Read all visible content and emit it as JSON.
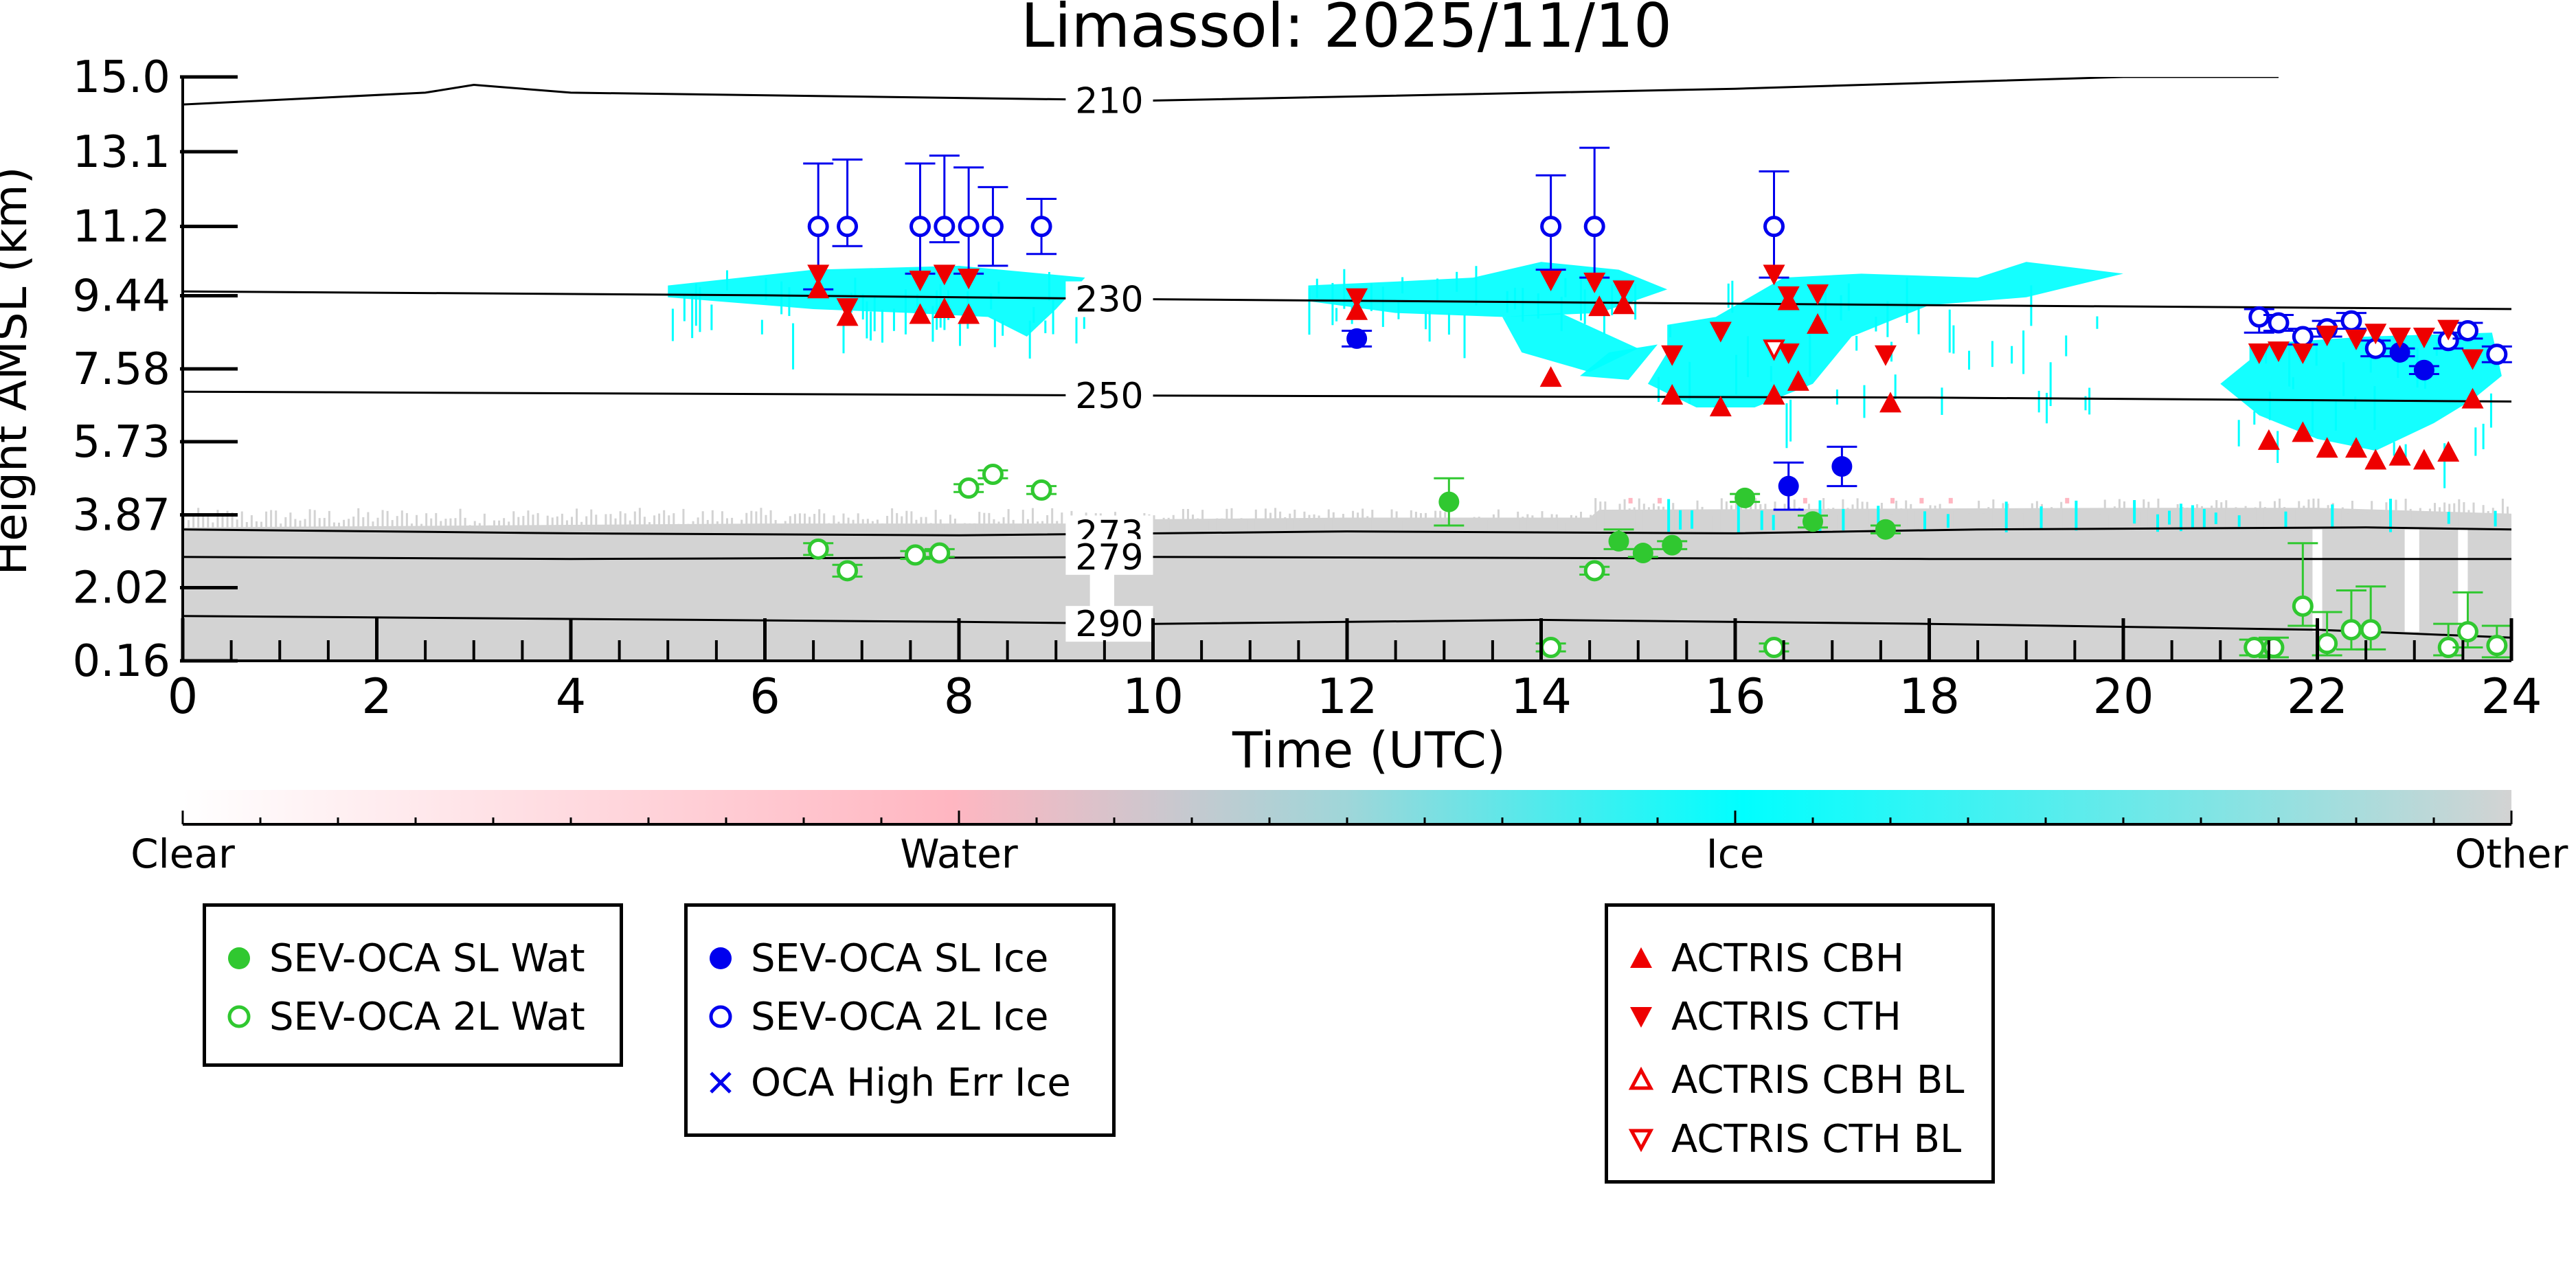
{
  "chart_data": {
    "type": "scatter",
    "title": "Limassol: 2025/11/10",
    "xlabel": "Time (UTC)",
    "ylabel": "Height AMSL (km)",
    "xlim": [
      0,
      24
    ],
    "ylim": [
      0.16,
      15.0
    ],
    "x_ticks": [
      "0",
      "2",
      "4",
      "6",
      "8",
      "10",
      "12",
      "14",
      "16",
      "18",
      "20",
      "22",
      "24"
    ],
    "y_ticks": [
      "0.16",
      "2.02",
      "3.87",
      "5.73",
      "7.58",
      "9.44",
      "11.2",
      "13.1",
      "15.0"
    ],
    "y_tick_values": [
      0.16,
      2.02,
      3.87,
      5.73,
      7.58,
      9.44,
      11.2,
      13.1,
      15.0
    ],
    "colors": {
      "water": "#30c830",
      "ice_marker": "#0000ee",
      "actris": "#ee0000",
      "ice_cloud": "#00ffff",
      "other": "#d3d3d3",
      "water_cloud": "#ffb6c1"
    },
    "colorbar": {
      "labels": [
        "Clear",
        "Water",
        "Ice",
        "Other"
      ]
    },
    "isotherms": [
      {
        "label": "210",
        "points": [
          [
            0,
            14.3
          ],
          [
            2.5,
            14.6
          ],
          [
            3,
            14.8
          ],
          [
            4,
            14.6
          ],
          [
            10,
            14.4
          ],
          [
            16,
            14.7
          ],
          [
            20,
            15.0
          ],
          [
            21.6,
            15.0
          ]
        ]
      },
      {
        "label": "230",
        "points": [
          [
            0,
            9.55
          ],
          [
            6,
            9.45
          ],
          [
            10,
            9.35
          ],
          [
            18,
            9.2
          ],
          [
            24,
            9.1
          ]
        ]
      },
      {
        "label": "250",
        "points": [
          [
            0,
            7.0
          ],
          [
            10,
            6.9
          ],
          [
            18,
            6.85
          ],
          [
            24,
            6.75
          ]
        ]
      },
      {
        "label": "273",
        "points": [
          [
            0,
            3.5
          ],
          [
            4,
            3.4
          ],
          [
            8,
            3.35
          ],
          [
            12,
            3.45
          ],
          [
            16,
            3.4
          ],
          [
            18.5,
            3.5
          ],
          [
            22.5,
            3.55
          ],
          [
            24,
            3.5
          ]
        ]
      },
      {
        "label": "279",
        "points": [
          [
            0,
            2.8
          ],
          [
            4,
            2.75
          ],
          [
            10,
            2.8
          ],
          [
            18,
            2.75
          ],
          [
            24,
            2.75
          ]
        ]
      },
      {
        "label": "290",
        "points": [
          [
            0,
            1.3
          ],
          [
            8,
            1.15
          ],
          [
            10,
            1.1
          ],
          [
            14,
            1.2
          ],
          [
            18,
            1.1
          ],
          [
            22,
            0.95
          ],
          [
            24,
            0.75
          ]
        ]
      }
    ],
    "series": [
      {
        "name": "SEV-OCA SL Wat",
        "marker": "filled-circle",
        "color": "#30c830",
        "points": [
          [
            13.05,
            4.2
          ],
          [
            14.8,
            3.2
          ],
          [
            15.05,
            2.9
          ],
          [
            15.35,
            3.1
          ],
          [
            16.1,
            4.3
          ],
          [
            16.8,
            3.7
          ],
          [
            17.55,
            3.5
          ]
        ],
        "err_up": [
          0.6,
          0.3,
          0.1,
          0.1,
          0.1,
          0.15,
          0.1
        ],
        "err_dn": [
          0.6,
          0.2,
          0.1,
          0.1,
          0.1,
          0.15,
          0.1
        ]
      },
      {
        "name": "SEV-OCA 2L Wat",
        "marker": "open-circle",
        "color": "#30c830",
        "points": [
          [
            6.55,
            3.0
          ],
          [
            6.85,
            2.45
          ],
          [
            7.55,
            2.85
          ],
          [
            7.8,
            2.9
          ],
          [
            8.1,
            4.55
          ],
          [
            8.35,
            4.9
          ],
          [
            8.85,
            4.5
          ],
          [
            14.1,
            0.5
          ],
          [
            14.55,
            2.45
          ],
          [
            16.4,
            0.5
          ],
          [
            21.35,
            0.5
          ],
          [
            21.55,
            0.5
          ],
          [
            21.85,
            1.55
          ],
          [
            22.1,
            0.6
          ],
          [
            22.35,
            0.95
          ],
          [
            22.55,
            0.95
          ],
          [
            23.35,
            0.5
          ],
          [
            23.55,
            0.9
          ],
          [
            23.85,
            0.55
          ]
        ],
        "err_up": [
          0.15,
          0.15,
          0.1,
          0.1,
          0.1,
          0.1,
          0.1,
          0.1,
          0.1,
          0.1,
          0.2,
          0.25,
          1.6,
          0.8,
          1.0,
          1.1,
          0.6,
          1.0,
          0.5
        ],
        "err_dn": [
          0.15,
          0.15,
          0.1,
          0.1,
          0.1,
          0.1,
          0.1,
          0.1,
          0.1,
          0.1,
          0.2,
          0.25,
          0.5,
          0.3,
          0.5,
          0.5,
          0.2,
          0.4,
          0.3
        ]
      },
      {
        "name": "SEV-OCA SL Ice",
        "marker": "filled-circle",
        "color": "#0000ee",
        "points": [
          [
            12.1,
            8.35
          ],
          [
            16.55,
            4.6
          ],
          [
            17.1,
            5.1
          ],
          [
            22.85,
            8.0
          ],
          [
            23.1,
            7.55
          ]
        ],
        "err_up": [
          0.2,
          0.6,
          0.5,
          0.1,
          0.1
        ],
        "err_dn": [
          0.2,
          0.6,
          0.5,
          0.1,
          0.1
        ]
      },
      {
        "name": "SEV-OCA 2L Ice",
        "marker": "open-circle",
        "color": "#0000ee",
        "points": [
          [
            6.55,
            11.2
          ],
          [
            6.85,
            11.2
          ],
          [
            7.6,
            11.2
          ],
          [
            7.85,
            11.2
          ],
          [
            8.1,
            11.2
          ],
          [
            8.35,
            11.2
          ],
          [
            8.85,
            11.2
          ],
          [
            14.1,
            11.2
          ],
          [
            14.55,
            11.2
          ],
          [
            16.4,
            11.2
          ],
          [
            21.4,
            8.9
          ],
          [
            21.6,
            8.75
          ],
          [
            21.85,
            8.4
          ],
          [
            22.1,
            8.6
          ],
          [
            22.35,
            8.8
          ],
          [
            22.6,
            8.1
          ],
          [
            23.35,
            8.3
          ],
          [
            23.55,
            8.55
          ],
          [
            23.85,
            7.95
          ]
        ],
        "err_up": [
          1.6,
          1.7,
          1.6,
          1.8,
          1.5,
          1.0,
          0.7,
          1.3,
          2.0,
          1.4,
          0.2,
          0.2,
          0.2,
          0.2,
          0.2,
          0.2,
          0.2,
          0.2,
          0.2
        ],
        "err_dn": [
          1.6,
          0.5,
          1.2,
          0.4,
          1.2,
          1.0,
          0.7,
          1.1,
          1.3,
          1.3,
          0.4,
          0.2,
          0.2,
          0.2,
          0.2,
          0.2,
          0.2,
          0.2,
          0.2
        ]
      },
      {
        "name": "OCA High Err Ice",
        "marker": "x",
        "color": "#0000ee",
        "points": []
      },
      {
        "name": "ACTRIS CBH",
        "marker": "triangle-up",
        "color": "#ee0000",
        "points": [
          [
            6.55,
            9.6
          ],
          [
            6.85,
            8.9
          ],
          [
            7.6,
            8.95
          ],
          [
            7.85,
            9.1
          ],
          [
            8.1,
            8.95
          ],
          [
            12.1,
            9.05
          ],
          [
            14.1,
            7.35
          ],
          [
            14.6,
            9.15
          ],
          [
            14.85,
            9.2
          ],
          [
            15.35,
            6.9
          ],
          [
            15.85,
            6.6
          ],
          [
            16.4,
            6.9
          ],
          [
            16.55,
            9.3
          ],
          [
            16.85,
            8.7
          ],
          [
            16.65,
            7.25
          ],
          [
            17.6,
            6.7
          ],
          [
            21.5,
            5.75
          ],
          [
            21.85,
            5.95
          ],
          [
            22.1,
            5.55
          ],
          [
            22.4,
            5.55
          ],
          [
            22.6,
            5.25
          ],
          [
            22.85,
            5.35
          ],
          [
            23.1,
            5.25
          ],
          [
            23.35,
            5.45
          ],
          [
            23.6,
            6.8
          ]
        ]
      },
      {
        "name": "ACTRIS CTH",
        "marker": "triangle-down",
        "color": "#ee0000",
        "points": [
          [
            6.55,
            10.0
          ],
          [
            6.85,
            9.15
          ],
          [
            7.6,
            9.85
          ],
          [
            7.85,
            10.0
          ],
          [
            8.1,
            9.9
          ],
          [
            12.1,
            9.4
          ],
          [
            14.1,
            9.85
          ],
          [
            14.55,
            9.8
          ],
          [
            14.85,
            9.6
          ],
          [
            15.35,
            7.95
          ],
          [
            15.85,
            8.55
          ],
          [
            16.4,
            10.0
          ],
          [
            16.55,
            9.45
          ],
          [
            16.85,
            9.5
          ],
          [
            16.55,
            8.0
          ],
          [
            17.55,
            7.95
          ],
          [
            21.4,
            8.0
          ],
          [
            21.6,
            8.05
          ],
          [
            21.85,
            8.0
          ],
          [
            22.1,
            8.45
          ],
          [
            22.4,
            8.35
          ],
          [
            22.6,
            8.5
          ],
          [
            22.85,
            8.4
          ],
          [
            23.1,
            8.4
          ],
          [
            23.35,
            8.6
          ],
          [
            23.6,
            7.85
          ]
        ]
      },
      {
        "name": "ACTRIS CBH BL",
        "marker": "open-triangle-up",
        "color": "#ee0000",
        "points": []
      },
      {
        "name": "ACTRIS CTH BL",
        "marker": "open-triangle-down",
        "color": "#ee0000",
        "points": [
          [
            16.4,
            8.1
          ]
        ]
      }
    ]
  },
  "legends": {
    "water": [
      "SEV-OCA SL Wat",
      "SEV-OCA 2L Wat"
    ],
    "ice": [
      "SEV-OCA SL Ice",
      "SEV-OCA 2L Ice",
      "OCA High Err Ice"
    ],
    "actris": [
      "ACTRIS CBH",
      "ACTRIS CTH",
      "ACTRIS CBH BL",
      "ACTRIS CTH BL"
    ]
  }
}
